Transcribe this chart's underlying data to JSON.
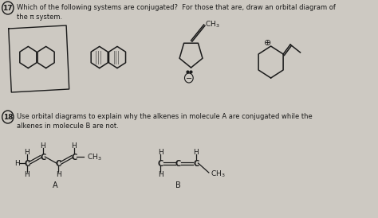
{
  "bg_color": "#cdc9c2",
  "text_color": "#1a1a1a",
  "q17_num": "17",
  "q17_text": "Which of the following systems are conjugated?  For those that are, draw an orbital diagram of\nthe π system.",
  "q18_num": "18",
  "q18_text": "Use orbital diagrams to explain why the alkenes in molecule A are conjugated while the\nalkenes in molecule B are not.",
  "figsize": [
    4.74,
    2.74
  ],
  "dpi": 100
}
